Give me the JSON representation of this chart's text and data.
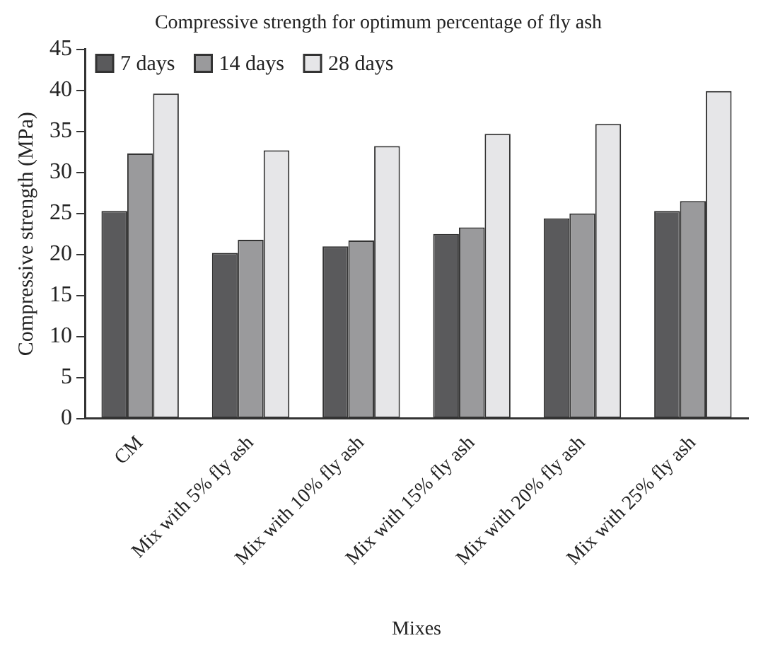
{
  "chart_data": {
    "type": "bar",
    "title": "Compressive strength for optimum percentage of fly ash",
    "xlabel": "Mixes",
    "ylabel": "Compressive strength (MPa)",
    "categories": [
      "CM",
      "Mix with 5% fly ash",
      "Mix with 10% fly ash",
      "Mix with 15% fly ash",
      "Mix with 20% fly ash",
      "Mix with 25% fly ash"
    ],
    "series": [
      {
        "name": "7 days",
        "color": "#5a5a5c",
        "values": [
          25.3,
          20.2,
          21.0,
          22.5,
          24.4,
          25.3
        ]
      },
      {
        "name": "14 days",
        "color": "#9a9a9c",
        "values": [
          32.3,
          21.8,
          21.7,
          23.3,
          25.0,
          26.5
        ]
      },
      {
        "name": "28 days",
        "color": "#e6e6e8",
        "values": [
          39.6,
          32.7,
          33.2,
          34.7,
          35.9,
          39.9
        ]
      }
    ],
    "ylim": [
      0,
      45
    ],
    "yticks": [
      0,
      5,
      10,
      15,
      20,
      25,
      30,
      35,
      40,
      45
    ],
    "grid": false,
    "legend": "top left"
  }
}
